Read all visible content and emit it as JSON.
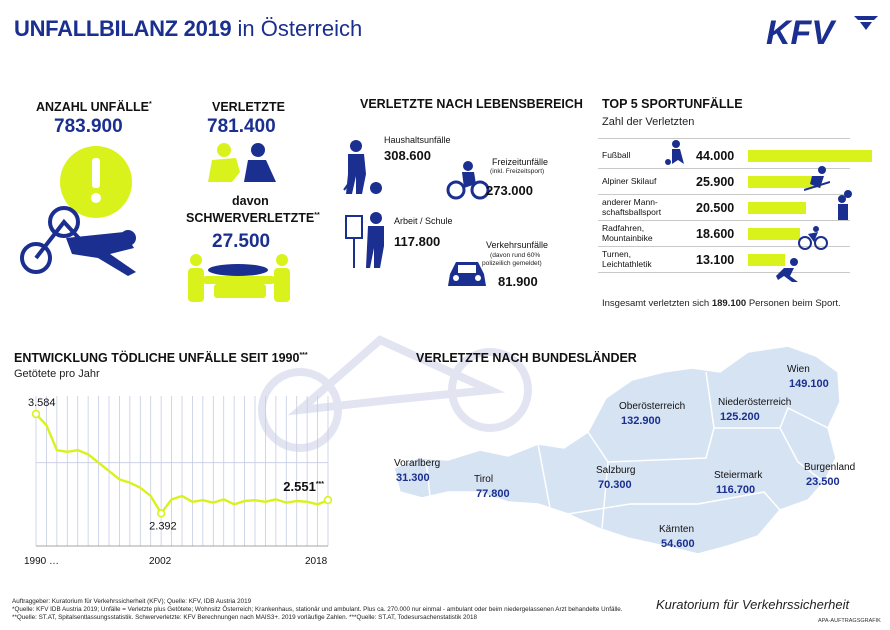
{
  "header": {
    "title_bold": "UNFALLBILANZ 2019",
    "title_rest": "in Österreich",
    "logo_text": "KFV"
  },
  "unfaelle": {
    "label": "ANZAHL UNFÄLLE",
    "mark": "*",
    "value": "783.900",
    "icon": "exclamation-icon"
  },
  "verletzte": {
    "label": "VERLETZTE",
    "value": "781.400",
    "davon": "davon",
    "schwer_label": "SCHWERVERLETZTE",
    "schwer_mark": "**",
    "schwer_value": "27.500"
  },
  "lebensbereich": {
    "title": "VERLETZTE NACH LEBENSBEREICH",
    "items": [
      {
        "label": "Haushaltsunfälle",
        "note": "",
        "note2": "",
        "value": "308.600"
      },
      {
        "label": "Freizeitunfälle",
        "note": "(inkl. Freizeitsport)",
        "note2": "",
        "value": "273.000"
      },
      {
        "label": "Arbeit / Schule",
        "note": "",
        "note2": "",
        "value": "117.800"
      },
      {
        "label": "Verkehrsunfälle",
        "note": "(davon rund 60%",
        "note2": "polizeilich gemeldet)",
        "value": "81.900"
      }
    ]
  },
  "sport": {
    "title": "TOP 5 SPORTUNFÄLLE",
    "subtitle": "Zahl der Verletzten",
    "rows": [
      {
        "label1": "Fußball",
        "label2": "",
        "value_text": "44.000",
        "value": 44000
      },
      {
        "label1": "Alpiner Skilauf",
        "label2": "",
        "value_text": "25.900",
        "value": 25900
      },
      {
        "label1": "anderer Mann-",
        "label2": "schaftsballsport",
        "value_text": "20.500",
        "value": 20500
      },
      {
        "label1": "Radfahren,",
        "label2": "Mountainbike",
        "value_text": "18.600",
        "value": 18600
      },
      {
        "label1": "Turnen,",
        "label2": "Leichtathletik",
        "value_text": "13.100",
        "value": 13100
      }
    ],
    "total_pre": "Insgesamt verletzten sich",
    "total_value": "189.100",
    "total_post": "Personen beim Sport."
  },
  "chart_data": {
    "type": "line",
    "title": "ENTWICKLUNG TÖDLICHE UNFÄLLE SEIT 1990",
    "title_mark": "***",
    "subtitle": "Getötete pro Jahr",
    "x": [
      1990,
      1991,
      1992,
      1993,
      1994,
      1995,
      1996,
      1997,
      1998,
      1999,
      2000,
      2001,
      2002,
      2003,
      2004,
      2005,
      2006,
      2007,
      2008,
      2009,
      2010,
      2011,
      2012,
      2013,
      2014,
      2015,
      2016,
      2017,
      2018
    ],
    "y": [
      3584,
      3450,
      3150,
      3130,
      3150,
      3100,
      3000,
      2900,
      2800,
      2760,
      2700,
      2600,
      2392,
      2560,
      2600,
      2530,
      2550,
      2520,
      2560,
      2500,
      2540,
      2550,
      2530,
      2560,
      2520,
      2540,
      2530,
      2500,
      2551
    ],
    "ylim": [
      2000,
      3800
    ],
    "x_tick_labels": [
      "1990 …",
      "2002",
      "2018"
    ],
    "annotations": [
      {
        "x": 1990,
        "label": "3.584"
      },
      {
        "x": 2002,
        "label": "2.392"
      },
      {
        "x": 2018,
        "label": "2.551",
        "mark": "***"
      }
    ],
    "color": "#d9f21c",
    "grid": "vertical"
  },
  "bundeslaender": {
    "title": "VERLETZTE NACH BUNDESLÄNDER",
    "items": [
      {
        "name": "Wien",
        "value": "149.100"
      },
      {
        "name": "Oberösterreich",
        "value": "132.900"
      },
      {
        "name": "Niederösterreich",
        "value": "125.200"
      },
      {
        "name": "Steiermark",
        "value": "116.700"
      },
      {
        "name": "Burgenland",
        "value": "23.500"
      },
      {
        "name": "Vorarlberg",
        "value": "31.300"
      },
      {
        "name": "Tirol",
        "value": "77.800"
      },
      {
        "name": "Salzburg",
        "value": "70.300"
      },
      {
        "name": "Kärnten",
        "value": "54.600"
      }
    ],
    "map_color": "#d6e3f3"
  },
  "footer": {
    "line1": "Auftraggeber: Kuratorium für Verkehrssicherheit (KFV); Quelle: KFV, IDB Austria 2019",
    "line2": "*Quelle: KFV IDB Austria 2019; Unfälle = Verletzte plus Getötete; Wohnsitz Österreich; Krankenhaus, stationär und ambulant. Plus ca. 270.000 nur einmal - ambulant oder beim niedergelassenen Arzt behandelte Unfälle.",
    "line3": "**Quelle: ST.AT, Spitalsentlassungsstatistik. Schwerverletzte: KFV Berechnungen nach MAIS3+. 2019 vorläufige Zahlen. ***Quelle: ST.AT, Todesursachenstatistik 2018",
    "org": "Kuratorium für Verkehrssicherheit",
    "apa": "APA-AUFTRAGSGRAFIK"
  },
  "colors": {
    "navy": "#1a2f8f",
    "accent": "#d9f21c",
    "map": "#d6e3f3"
  }
}
